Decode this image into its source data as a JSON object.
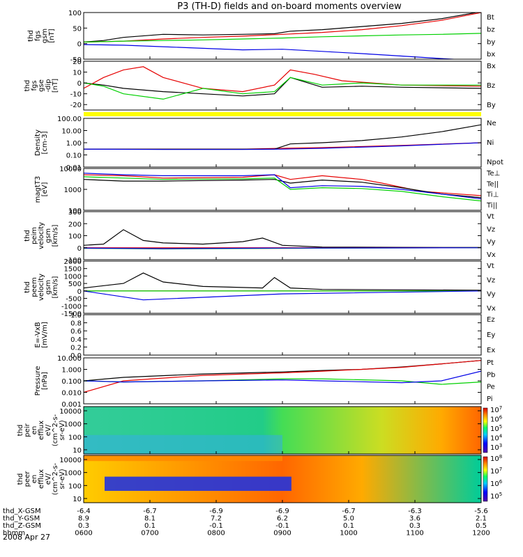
{
  "title": "P3 (TH-D) fields and on-board moments overview",
  "date": "2008 Apr 27",
  "colors": {
    "black": "#000000",
    "red": "#e60000",
    "green": "#00d000",
    "blue": "#0000e6",
    "yellow": "#ffff00"
  },
  "time_axis": {
    "ticks": [
      "0600",
      "0700",
      "0800",
      "0900",
      "1000",
      "1100",
      "1200"
    ],
    "rows": [
      {
        "label": "thd_X-GSM",
        "values": [
          "-6.4",
          "-6.7",
          "-6.9",
          "-6.9",
          "-6.7",
          "-6.3",
          "-5.6"
        ]
      },
      {
        "label": "thd_Y-GSM",
        "values": [
          "8.9",
          "8.1",
          "7.2",
          "6.2",
          "5.0",
          "3.6",
          "2.1"
        ]
      },
      {
        "label": "thd_Z-GSM",
        "values": [
          "0.3",
          "0.1",
          "-0.1",
          "-0.1",
          "0.1",
          "0.3",
          "0.5"
        ]
      },
      {
        "label": "hhmm",
        "values": [
          "0600",
          "0700",
          "0800",
          "0900",
          "1000",
          "1100",
          "1200"
        ]
      }
    ]
  },
  "chart_data": [
    {
      "type": "line",
      "ylabel": [
        "thd",
        "fgs",
        "gsm",
        "[nT]"
      ],
      "yticks": [
        "100",
        "50",
        "0",
        "-50"
      ],
      "ylim": [
        -50,
        100
      ],
      "series": [
        {
          "name": "Bt",
          "color": "#000000",
          "x": [
            0,
            0.05,
            0.1,
            0.2,
            0.3,
            0.4,
            0.48,
            0.52,
            0.6,
            0.7,
            0.8,
            0.9,
            1
          ],
          "y": [
            5,
            10,
            20,
            30,
            28,
            30,
            32,
            40,
            45,
            55,
            65,
            80,
            103
          ]
        },
        {
          "name": "bz",
          "color": "#e60000",
          "x": [
            0,
            0.1,
            0.2,
            0.3,
            0.4,
            0.5,
            0.6,
            0.7,
            0.8,
            0.9,
            1
          ],
          "y": [
            5,
            8,
            15,
            20,
            24,
            30,
            36,
            45,
            58,
            75,
            100
          ]
        },
        {
          "name": "by",
          "color": "#00d000",
          "x": [
            0,
            0.1,
            0.2,
            0.3,
            0.4,
            0.5,
            0.6,
            0.7,
            0.8,
            0.9,
            1
          ],
          "y": [
            5,
            8,
            10,
            12,
            15,
            18,
            22,
            25,
            28,
            30,
            33
          ]
        },
        {
          "name": "bx",
          "color": "#0000e6",
          "x": [
            0,
            0.1,
            0.2,
            0.3,
            0.4,
            0.5,
            0.6,
            0.7,
            0.8,
            0.9,
            1
          ],
          "y": [
            -3,
            -5,
            -10,
            -15,
            -20,
            -18,
            -25,
            -32,
            -40,
            -48,
            -55
          ]
        }
      ]
    },
    {
      "type": "line",
      "ylabel": [
        "thd",
        "fgs",
        "gse",
        "-dip",
        "[nT]"
      ],
      "yticks": [
        "20",
        "10",
        "0",
        "-10",
        "-20"
      ],
      "ylim": [
        -25,
        20
      ],
      "series": [
        {
          "name": "Bx",
          "color": "#000000",
          "x": [
            0,
            0.05,
            0.1,
            0.2,
            0.3,
            0.4,
            0.48,
            0.52,
            0.6,
            0.7,
            0.8,
            1
          ],
          "y": [
            0,
            -2,
            -5,
            -8,
            -10,
            -12,
            -10,
            5,
            -4,
            -3,
            -4,
            -5
          ]
        },
        {
          "name": "Bz",
          "color": "#e60000",
          "x": [
            0,
            0.05,
            0.1,
            0.15,
            0.2,
            0.3,
            0.4,
            0.48,
            0.52,
            0.58,
            0.65,
            0.8,
            1
          ],
          "y": [
            -5,
            5,
            12,
            15,
            5,
            -5,
            -8,
            -2,
            12,
            8,
            2,
            -2,
            -3
          ]
        },
        {
          "name": "By",
          "color": "#00d000",
          "x": [
            0,
            0.05,
            0.1,
            0.2,
            0.3,
            0.4,
            0.48,
            0.52,
            0.6,
            0.7,
            0.8,
            1
          ],
          "y": [
            0,
            -3,
            -10,
            -15,
            -5,
            -10,
            -8,
            5,
            -2,
            0,
            -2,
            -2
          ]
        }
      ]
    },
    {
      "type": "line",
      "ylabel": [
        "Density",
        "[cm-3]"
      ],
      "yticks": [
        "100.00",
        "10.00",
        "1.00",
        "0.10",
        "0.01"
      ],
      "ylim": [
        0.01,
        100
      ],
      "yscale": "log",
      "series": [
        {
          "name": "Ne",
          "color": "#e60000",
          "x": [
            0,
            0.2,
            0.4,
            0.5,
            0.6,
            0.8,
            1
          ],
          "y": [
            0.3,
            0.3,
            0.3,
            0.35,
            0.4,
            0.6,
            1.0
          ]
        },
        {
          "name": "Ni",
          "color": "#000000",
          "x": [
            0,
            0.2,
            0.4,
            0.48,
            0.52,
            0.6,
            0.7,
            0.8,
            0.9,
            1
          ],
          "y": [
            0.3,
            0.3,
            0.3,
            0.3,
            0.8,
            1.0,
            1.5,
            3.0,
            8.0,
            30.0
          ]
        },
        {
          "name": "Npot",
          "color": "#0000e6",
          "x": [
            0,
            0.2,
            0.4,
            0.5,
            0.6,
            0.8,
            1
          ],
          "y": [
            0.3,
            0.28,
            0.28,
            0.3,
            0.35,
            0.55,
            1.0
          ]
        }
      ]
    },
    {
      "type": "line",
      "ylabel": [
        "magtT3",
        "[eV]"
      ],
      "yticks": [
        "10000",
        "1000",
        "100"
      ],
      "ylim": [
        100,
        10000
      ],
      "yscale": "log",
      "series": [
        {
          "name": "Te⊥",
          "color": "#e60000",
          "x": [
            0,
            0.1,
            0.2,
            0.4,
            0.48,
            0.52,
            0.6,
            0.7,
            0.75,
            0.85,
            1
          ],
          "y": [
            5000,
            4500,
            3500,
            3800,
            5000,
            3000,
            4500,
            3000,
            2000,
            800,
            500
          ]
        },
        {
          "name": "Te||",
          "color": "#000000",
          "x": [
            0,
            0.1,
            0.2,
            0.4,
            0.48,
            0.52,
            0.6,
            0.7,
            0.8,
            0.9,
            1
          ],
          "y": [
            3000,
            2500,
            2500,
            2800,
            3000,
            2000,
            2800,
            2200,
            1200,
            600,
            400
          ]
        },
        {
          "name": "Ti⊥",
          "color": "#0000e6",
          "x": [
            0,
            0.1,
            0.2,
            0.4,
            0.48,
            0.52,
            0.6,
            0.7,
            0.8,
            0.9,
            1
          ],
          "y": [
            6000,
            5000,
            4500,
            4500,
            5000,
            1200,
            1500,
            1400,
            1000,
            600,
            350
          ]
        },
        {
          "name": "Ti||",
          "color": "#00d000",
          "x": [
            0,
            0.1,
            0.2,
            0.4,
            0.48,
            0.52,
            0.6,
            0.7,
            0.8,
            0.9,
            1
          ],
          "y": [
            4000,
            3500,
            3000,
            3200,
            3500,
            1000,
            1200,
            1100,
            800,
            450,
            280
          ]
        }
      ]
    },
    {
      "type": "line",
      "ylabel": [
        "thd",
        "peim",
        "velocity",
        "gsm",
        "[km/s]"
      ],
      "yticks": [
        "300",
        "200",
        "100",
        "0",
        "-100"
      ],
      "ylim": [
        -100,
        300
      ],
      "series": [
        {
          "name": "Vt",
          "color": "#000000",
          "x": [
            0,
            0.05,
            0.1,
            0.15,
            0.2,
            0.3,
            0.4,
            0.45,
            0.5,
            0.6,
            0.8,
            1
          ],
          "y": [
            20,
            30,
            150,
            60,
            40,
            30,
            50,
            80,
            20,
            5,
            3,
            2
          ]
        },
        {
          "name": "Vz",
          "color": "#e60000",
          "x": [
            0,
            0.2,
            0.5,
            1
          ],
          "y": [
            0,
            0,
            0,
            0
          ]
        },
        {
          "name": "Vy",
          "color": "#00d000",
          "x": [
            0,
            0.2,
            0.5,
            1
          ],
          "y": [
            -5,
            -10,
            -5,
            0
          ]
        },
        {
          "name": "Vx",
          "color": "#0000e6",
          "x": [
            0,
            0.2,
            0.5,
            1
          ],
          "y": [
            -3,
            -8,
            -3,
            0
          ]
        }
      ]
    },
    {
      "type": "line",
      "ylabel": [
        "thd",
        "peem",
        "velocity",
        "gsm",
        "[km/s]"
      ],
      "yticks": [
        "2000",
        "1500",
        "1000",
        "500",
        "0",
        "-500",
        "-1000",
        "-1500"
      ],
      "ylim": [
        -1500,
        2000
      ],
      "series": [
        {
          "name": "Vt",
          "color": "#000000",
          "x": [
            0,
            0.1,
            0.15,
            0.2,
            0.3,
            0.45,
            0.48,
            0.52,
            0.6,
            1
          ],
          "y": [
            200,
            500,
            1200,
            600,
            300,
            200,
            900,
            200,
            100,
            50
          ]
        },
        {
          "name": "Vz",
          "color": "#e60000",
          "x": [
            0,
            0.5,
            1
          ],
          "y": [
            0,
            0,
            0
          ]
        },
        {
          "name": "Vy",
          "color": "#00d000",
          "x": [
            0,
            0.5,
            1
          ],
          "y": [
            0,
            0,
            0
          ]
        },
        {
          "name": "Vx",
          "color": "#0000e6",
          "x": [
            0,
            0.15,
            0.5,
            1
          ],
          "y": [
            0,
            -600,
            -200,
            0
          ]
        }
      ]
    },
    {
      "type": "line",
      "ylabel": [
        "E=-VxB",
        "[mV/m]"
      ],
      "yticks": [
        "1.0",
        "0.8",
        "0.6",
        "0.4",
        "0.2",
        "0.0"
      ],
      "ylim": [
        0,
        1
      ],
      "series": [
        {
          "name": "Ez",
          "color": "#e60000",
          "x": [],
          "y": []
        },
        {
          "name": "Ey",
          "color": "#00d000",
          "x": [],
          "y": []
        },
        {
          "name": "Ex",
          "color": "#0000e6",
          "x": [],
          "y": []
        }
      ]
    },
    {
      "type": "line",
      "ylabel": [
        "Pressure",
        "[nPa]"
      ],
      "yticks": [
        "10.000",
        "1.000",
        "0.100",
        "0.010",
        "0.001"
      ],
      "ylim": [
        0.001,
        10
      ],
      "yscale": "log",
      "series": [
        {
          "name": "Pt",
          "color": "#000000",
          "x": [
            0,
            0.1,
            0.3,
            0.5,
            0.6,
            0.7,
            0.8,
            0.9,
            1
          ],
          "y": [
            0.1,
            0.2,
            0.4,
            0.6,
            0.8,
            1.0,
            1.6,
            3.0,
            6.0
          ]
        },
        {
          "name": "Pb",
          "color": "#e60000",
          "x": [
            0,
            0.1,
            0.3,
            0.5,
            0.6,
            0.7,
            0.8,
            0.9,
            1
          ],
          "y": [
            0.01,
            0.1,
            0.3,
            0.5,
            0.7,
            1.0,
            1.5,
            3.0,
            6.0
          ]
        },
        {
          "name": "Pe",
          "color": "#00d000",
          "x": [
            0,
            0.1,
            0.3,
            0.5,
            0.6,
            0.8,
            0.9,
            1
          ],
          "y": [
            0.1,
            0.08,
            0.1,
            0.15,
            0.15,
            0.1,
            0.05,
            0.08
          ]
        },
        {
          "name": "Pi",
          "color": "#0000e6",
          "x": [
            0,
            0.1,
            0.3,
            0.5,
            0.6,
            0.8,
            0.9,
            1
          ],
          "y": [
            0.1,
            0.08,
            0.1,
            0.12,
            0.1,
            0.07,
            0.1,
            0.7
          ]
        }
      ]
    },
    {
      "type": "heatmap",
      "ylabel": [
        "thd",
        "peir",
        "en",
        "efflux",
        "eV/",
        "(cm^2-s-",
        "sr-eV)"
      ],
      "yticks": [
        "10000",
        "1000",
        "100",
        "10"
      ],
      "colorbar": [
        "10^7",
        "10^6",
        "10^5",
        "10^4",
        "10^3"
      ]
    },
    {
      "type": "heatmap",
      "ylabel": [
        "thd",
        "peer",
        "en",
        "efflux",
        "eV/",
        "(cm^2-s-",
        "sr-eV)"
      ],
      "yticks": [
        "10000",
        "1000",
        "100",
        "10"
      ],
      "colorbar": [
        "10^8",
        "10^7",
        "10^6",
        "10^5"
      ]
    }
  ]
}
